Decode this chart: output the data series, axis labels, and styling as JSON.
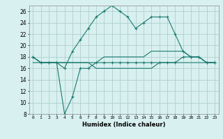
{
  "xlabel": "Humidex (Indice chaleur)",
  "x": [
    0,
    1,
    2,
    3,
    4,
    5,
    6,
    7,
    8,
    9,
    10,
    11,
    12,
    13,
    14,
    15,
    16,
    17,
    18,
    19,
    20,
    21,
    22,
    23
  ],
  "line1": [
    18,
    17,
    17,
    17,
    16,
    19,
    21,
    23,
    25,
    26,
    27,
    26,
    25,
    23,
    24,
    25,
    25,
    25,
    22,
    19,
    18,
    18,
    17,
    17
  ],
  "line2": [
    18,
    17,
    17,
    17,
    8,
    11,
    16,
    16,
    17,
    17,
    17,
    17,
    17,
    17,
    17,
    17,
    17,
    17,
    17,
    18,
    18,
    18,
    17,
    17
  ],
  "line3": [
    18,
    17,
    17,
    17,
    17,
    17,
    17,
    17,
    17,
    18,
    18,
    18,
    18,
    18,
    18,
    19,
    19,
    19,
    19,
    19,
    18,
    18,
    17,
    17
  ],
  "line4": [
    17,
    17,
    17,
    17,
    17,
    17,
    17,
    17,
    16,
    16,
    16,
    16,
    16,
    16,
    16,
    16,
    17,
    17,
    17,
    17,
    17,
    17,
    17,
    17
  ],
  "line_color": "#1a7a6e",
  "bg_color": "#d8f0f0",
  "grid_color": "#b0cece",
  "ylim": [
    8,
    27
  ],
  "yticks": [
    8,
    10,
    12,
    14,
    16,
    18,
    20,
    22,
    24,
    26
  ],
  "xticks": [
    0,
    1,
    2,
    3,
    4,
    5,
    6,
    7,
    8,
    9,
    10,
    11,
    12,
    13,
    14,
    15,
    16,
    17,
    18,
    19,
    20,
    21,
    22,
    23
  ]
}
